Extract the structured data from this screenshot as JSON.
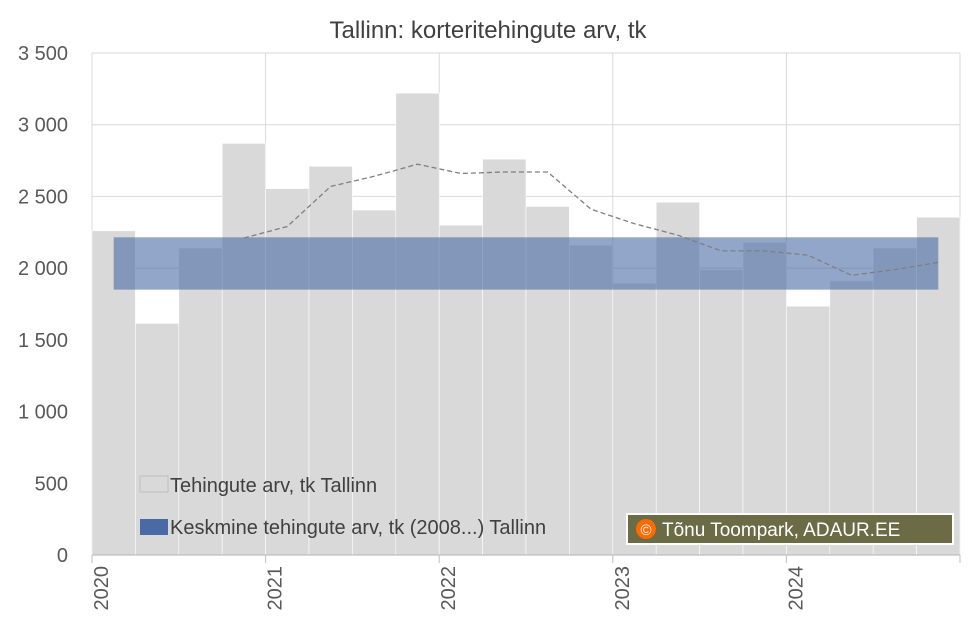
{
  "chart_data": {
    "type": "bar",
    "title": "Tallinn: korteritehingute arv, tk",
    "ylim": [
      0,
      3500
    ],
    "y_ticks": [
      {
        "value": 0,
        "label": "0"
      },
      {
        "value": 500,
        "label": "500"
      },
      {
        "value": 1000,
        "label": "1 000"
      },
      {
        "value": 1500,
        "label": "1 500"
      },
      {
        "value": 2000,
        "label": "2 000"
      },
      {
        "value": 2500,
        "label": "2 500"
      },
      {
        "value": 3000,
        "label": "3 000"
      },
      {
        "value": 3500,
        "label": "3 500"
      }
    ],
    "x_year_labels": [
      "2020",
      "2021",
      "2022",
      "2023",
      "2024"
    ],
    "periods_per_year": 4,
    "series": [
      {
        "name": "Tehingute arv, tk Tallinn",
        "kind": "bar",
        "color": "#d9d9d9",
        "values": [
          2260,
          1615,
          2140,
          2870,
          2555,
          2710,
          2405,
          3220,
          2300,
          2760,
          2430,
          2160,
          1895,
          2460,
          1990,
          2180,
          1735,
          1910,
          2140,
          2355
        ]
      },
      {
        "name": "Keskmine tehingute arv, tk (2008...) Tallinn",
        "kind": "band",
        "color": "#4a6aa5",
        "lower": 1850,
        "upper": 2215,
        "start_index": 0.5,
        "end_index": 19.5
      },
      {
        "name": "",
        "kind": "moving-average",
        "color": "#7f7f7f",
        "dashed": true,
        "values": [
          null,
          null,
          null,
          2210,
          2290,
          2570,
          2640,
          2725,
          2660,
          2670,
          2670,
          2410,
          2310,
          2230,
          2120,
          2120,
          2090,
          1950,
          1990,
          2040
        ]
      }
    ],
    "legend": [
      {
        "label": "Tehingute arv, tk Tallinn",
        "color": "#d9d9d9"
      },
      {
        "label": "Keskmine tehingute arv, tk (2008...) Tallinn",
        "color": "#4a6aa5"
      }
    ],
    "legend_placement": "bottom-left",
    "grid": true
  },
  "credit": {
    "symbol": "©",
    "text": "Tõnu Toompark, ADAUR.EE",
    "background": "#6b6b45",
    "symbol_color": "#ff6a00"
  },
  "colors": {
    "grid": "#d9d9d9",
    "axis": "#bfbfbf",
    "bar": "#d9d9d9",
    "band": "#4a6aa5",
    "ma_line": "#7f7f7f"
  }
}
